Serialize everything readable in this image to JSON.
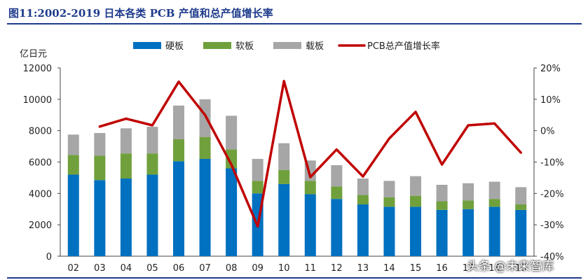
{
  "header": {
    "title": "图11:2002-2019 日本各类 PCB 产值和总产值增长率"
  },
  "chart_data": {
    "type": "bar",
    "stacked": true,
    "categories": [
      "02",
      "03",
      "04",
      "05",
      "06",
      "07",
      "08",
      "09",
      "10",
      "11",
      "12",
      "13",
      "14",
      "15",
      "16",
      "17",
      "18",
      "19"
    ],
    "series": [
      {
        "name": "硬板",
        "color": "#0070c0",
        "values": [
          5200,
          4850,
          4950,
          5200,
          6050,
          6200,
          5600,
          4000,
          4600,
          3950,
          3650,
          3300,
          3150,
          3150,
          2950,
          3000,
          3150,
          2950
        ]
      },
      {
        "name": "软板",
        "color": "#70a03c",
        "values": [
          1250,
          1550,
          1600,
          1350,
          1400,
          1400,
          1200,
          800,
          900,
          850,
          800,
          600,
          600,
          700,
          550,
          550,
          500,
          350
        ]
      },
      {
        "name": "载板",
        "color": "#a6a6a6",
        "values": [
          1300,
          1450,
          1600,
          1700,
          2150,
          2400,
          2150,
          1400,
          1700,
          1300,
          1350,
          1050,
          1050,
          1250,
          1050,
          1100,
          1100,
          1100
        ]
      }
    ],
    "line_series": {
      "name": "PCB总产值增长率",
      "color": "#c00000",
      "axis": "right",
      "unit": "%",
      "values": [
        null,
        1.3,
        3.8,
        1.7,
        15.6,
        5.0,
        -10.8,
        -30.5,
        15.8,
        -14.8,
        -6.0,
        -14.6,
        -2.5,
        6.0,
        -10.8,
        1.7,
        2.3,
        -7.0
      ]
    },
    "y_left": {
      "label": "亿日元",
      "min": 0,
      "max": 12000,
      "ticks": [
        "0",
        "2000",
        "4000",
        "6000",
        "8000",
        "10000",
        "12000"
      ]
    },
    "y_right": {
      "min": -40,
      "max": 20,
      "ticks": [
        "20%",
        "10%",
        "0%",
        "-10%",
        "-20%",
        "-30%",
        "-40%"
      ]
    },
    "legend_position": "top"
  },
  "watermark": "头条 @未来智库"
}
